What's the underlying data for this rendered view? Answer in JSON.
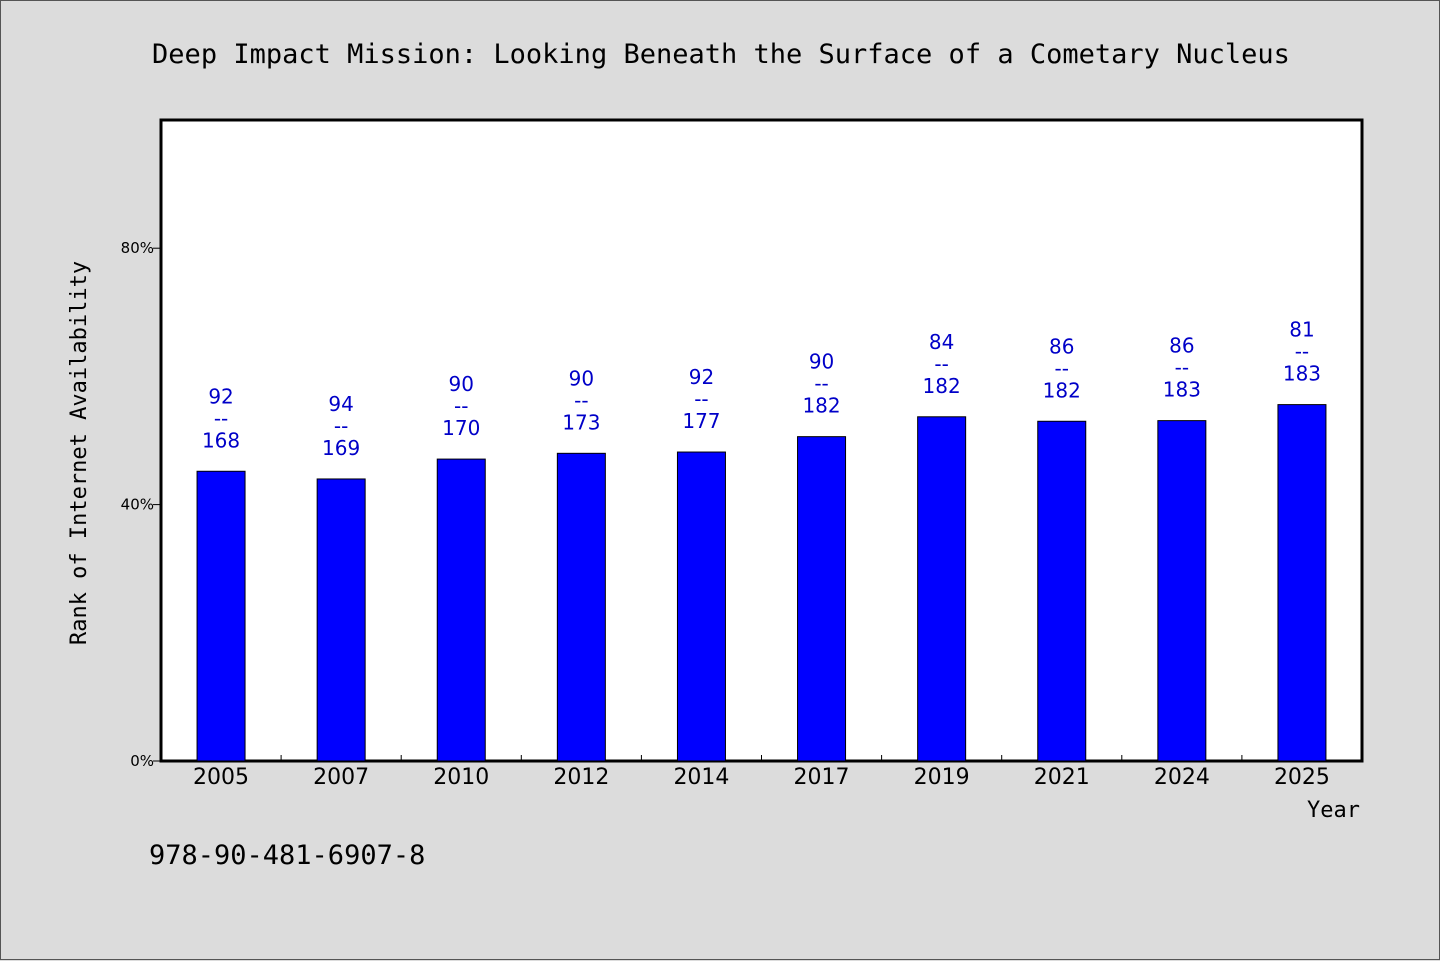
{
  "chart_data": {
    "type": "bar",
    "title": "Deep Impact Mission: Looking Beneath the Surface of a Cometary Nucleus",
    "xlabel": "Year",
    "ylabel": "Rank of Internet Availability",
    "ylim": [
      0,
      100
    ],
    "yticks": [
      {
        "value": 0,
        "label": "0%"
      },
      {
        "value": 40,
        "label": "40%"
      },
      {
        "value": 80,
        "label": "80%"
      }
    ],
    "categories": [
      "2005",
      "2007",
      "2010",
      "2012",
      "2014",
      "2017",
      "2019",
      "2021",
      "2024",
      "2025"
    ],
    "series": [
      {
        "values": [
          45.2,
          44.0,
          47.1,
          48.0,
          48.2,
          50.6,
          53.7,
          53.0,
          53.1,
          55.6
        ],
        "color": "#0000ff",
        "data_labels": [
          {
            "rank": "92",
            "sep": "--",
            "total": "168"
          },
          {
            "rank": "94",
            "sep": "--",
            "total": "169"
          },
          {
            "rank": "90",
            "sep": "--",
            "total": "170"
          },
          {
            "rank": "90",
            "sep": "--",
            "total": "173"
          },
          {
            "rank": "92",
            "sep": "--",
            "total": "177"
          },
          {
            "rank": "90",
            "sep": "--",
            "total": "182"
          },
          {
            "rank": "84",
            "sep": "--",
            "total": "182"
          },
          {
            "rank": "86",
            "sep": "--",
            "total": "182"
          },
          {
            "rank": "86",
            "sep": "--",
            "total": "183"
          },
          {
            "rank": "81",
            "sep": "--",
            "total": "183"
          }
        ]
      }
    ],
    "grid": false,
    "label_color": "#0000c8",
    "background": "#dcdcdc",
    "plot_background": "#ffffff"
  },
  "footer": {
    "isbn": "978-90-481-6907-8"
  }
}
